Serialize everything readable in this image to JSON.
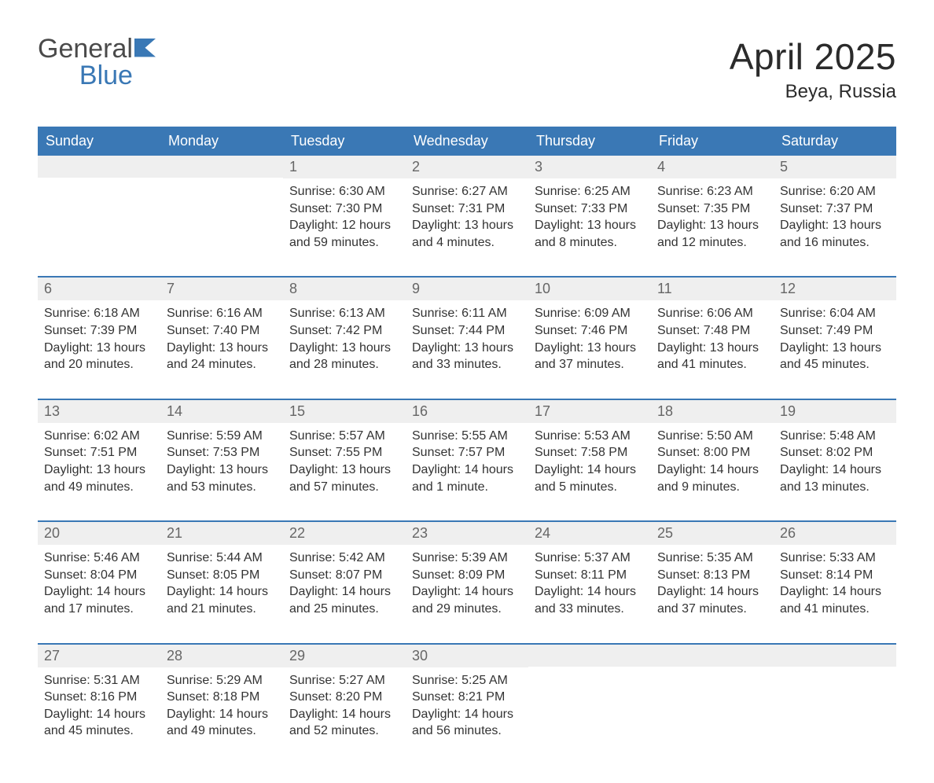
{
  "logo": {
    "line1": "General",
    "line2": "Blue"
  },
  "title": "April 2025",
  "location": "Beya, Russia",
  "colors": {
    "header_bg": "#3a78b5",
    "header_text": "#ffffff",
    "date_strip_bg": "#efefef",
    "date_text": "#666666",
    "body_text": "#333333",
    "week_border": "#3a78b5",
    "logo_gray": "#4a4a4a",
    "logo_blue": "#3a78b5"
  },
  "day_names": [
    "Sunday",
    "Monday",
    "Tuesday",
    "Wednesday",
    "Thursday",
    "Friday",
    "Saturday"
  ],
  "weeks": [
    [
      {
        "date": "",
        "sunrise": "",
        "sunset": "",
        "daylight": ""
      },
      {
        "date": "",
        "sunrise": "",
        "sunset": "",
        "daylight": ""
      },
      {
        "date": "1",
        "sunrise": "Sunrise: 6:30 AM",
        "sunset": "Sunset: 7:30 PM",
        "daylight": "Daylight: 12 hours and 59 minutes."
      },
      {
        "date": "2",
        "sunrise": "Sunrise: 6:27 AM",
        "sunset": "Sunset: 7:31 PM",
        "daylight": "Daylight: 13 hours and 4 minutes."
      },
      {
        "date": "3",
        "sunrise": "Sunrise: 6:25 AM",
        "sunset": "Sunset: 7:33 PM",
        "daylight": "Daylight: 13 hours and 8 minutes."
      },
      {
        "date": "4",
        "sunrise": "Sunrise: 6:23 AM",
        "sunset": "Sunset: 7:35 PM",
        "daylight": "Daylight: 13 hours and 12 minutes."
      },
      {
        "date": "5",
        "sunrise": "Sunrise: 6:20 AM",
        "sunset": "Sunset: 7:37 PM",
        "daylight": "Daylight: 13 hours and 16 minutes."
      }
    ],
    [
      {
        "date": "6",
        "sunrise": "Sunrise: 6:18 AM",
        "sunset": "Sunset: 7:39 PM",
        "daylight": "Daylight: 13 hours and 20 minutes."
      },
      {
        "date": "7",
        "sunrise": "Sunrise: 6:16 AM",
        "sunset": "Sunset: 7:40 PM",
        "daylight": "Daylight: 13 hours and 24 minutes."
      },
      {
        "date": "8",
        "sunrise": "Sunrise: 6:13 AM",
        "sunset": "Sunset: 7:42 PM",
        "daylight": "Daylight: 13 hours and 28 minutes."
      },
      {
        "date": "9",
        "sunrise": "Sunrise: 6:11 AM",
        "sunset": "Sunset: 7:44 PM",
        "daylight": "Daylight: 13 hours and 33 minutes."
      },
      {
        "date": "10",
        "sunrise": "Sunrise: 6:09 AM",
        "sunset": "Sunset: 7:46 PM",
        "daylight": "Daylight: 13 hours and 37 minutes."
      },
      {
        "date": "11",
        "sunrise": "Sunrise: 6:06 AM",
        "sunset": "Sunset: 7:48 PM",
        "daylight": "Daylight: 13 hours and 41 minutes."
      },
      {
        "date": "12",
        "sunrise": "Sunrise: 6:04 AM",
        "sunset": "Sunset: 7:49 PM",
        "daylight": "Daylight: 13 hours and 45 minutes."
      }
    ],
    [
      {
        "date": "13",
        "sunrise": "Sunrise: 6:02 AM",
        "sunset": "Sunset: 7:51 PM",
        "daylight": "Daylight: 13 hours and 49 minutes."
      },
      {
        "date": "14",
        "sunrise": "Sunrise: 5:59 AM",
        "sunset": "Sunset: 7:53 PM",
        "daylight": "Daylight: 13 hours and 53 minutes."
      },
      {
        "date": "15",
        "sunrise": "Sunrise: 5:57 AM",
        "sunset": "Sunset: 7:55 PM",
        "daylight": "Daylight: 13 hours and 57 minutes."
      },
      {
        "date": "16",
        "sunrise": "Sunrise: 5:55 AM",
        "sunset": "Sunset: 7:57 PM",
        "daylight": "Daylight: 14 hours and 1 minute."
      },
      {
        "date": "17",
        "sunrise": "Sunrise: 5:53 AM",
        "sunset": "Sunset: 7:58 PM",
        "daylight": "Daylight: 14 hours and 5 minutes."
      },
      {
        "date": "18",
        "sunrise": "Sunrise: 5:50 AM",
        "sunset": "Sunset: 8:00 PM",
        "daylight": "Daylight: 14 hours and 9 minutes."
      },
      {
        "date": "19",
        "sunrise": "Sunrise: 5:48 AM",
        "sunset": "Sunset: 8:02 PM",
        "daylight": "Daylight: 14 hours and 13 minutes."
      }
    ],
    [
      {
        "date": "20",
        "sunrise": "Sunrise: 5:46 AM",
        "sunset": "Sunset: 8:04 PM",
        "daylight": "Daylight: 14 hours and 17 minutes."
      },
      {
        "date": "21",
        "sunrise": "Sunrise: 5:44 AM",
        "sunset": "Sunset: 8:05 PM",
        "daylight": "Daylight: 14 hours and 21 minutes."
      },
      {
        "date": "22",
        "sunrise": "Sunrise: 5:42 AM",
        "sunset": "Sunset: 8:07 PM",
        "daylight": "Daylight: 14 hours and 25 minutes."
      },
      {
        "date": "23",
        "sunrise": "Sunrise: 5:39 AM",
        "sunset": "Sunset: 8:09 PM",
        "daylight": "Daylight: 14 hours and 29 minutes."
      },
      {
        "date": "24",
        "sunrise": "Sunrise: 5:37 AM",
        "sunset": "Sunset: 8:11 PM",
        "daylight": "Daylight: 14 hours and 33 minutes."
      },
      {
        "date": "25",
        "sunrise": "Sunrise: 5:35 AM",
        "sunset": "Sunset: 8:13 PM",
        "daylight": "Daylight: 14 hours and 37 minutes."
      },
      {
        "date": "26",
        "sunrise": "Sunrise: 5:33 AM",
        "sunset": "Sunset: 8:14 PM",
        "daylight": "Daylight: 14 hours and 41 minutes."
      }
    ],
    [
      {
        "date": "27",
        "sunrise": "Sunrise: 5:31 AM",
        "sunset": "Sunset: 8:16 PM",
        "daylight": "Daylight: 14 hours and 45 minutes."
      },
      {
        "date": "28",
        "sunrise": "Sunrise: 5:29 AM",
        "sunset": "Sunset: 8:18 PM",
        "daylight": "Daylight: 14 hours and 49 minutes."
      },
      {
        "date": "29",
        "sunrise": "Sunrise: 5:27 AM",
        "sunset": "Sunset: 8:20 PM",
        "daylight": "Daylight: 14 hours and 52 minutes."
      },
      {
        "date": "30",
        "sunrise": "Sunrise: 5:25 AM",
        "sunset": "Sunset: 8:21 PM",
        "daylight": "Daylight: 14 hours and 56 minutes."
      },
      {
        "date": "",
        "sunrise": "",
        "sunset": "",
        "daylight": ""
      },
      {
        "date": "",
        "sunrise": "",
        "sunset": "",
        "daylight": ""
      },
      {
        "date": "",
        "sunrise": "",
        "sunset": "",
        "daylight": ""
      }
    ]
  ]
}
